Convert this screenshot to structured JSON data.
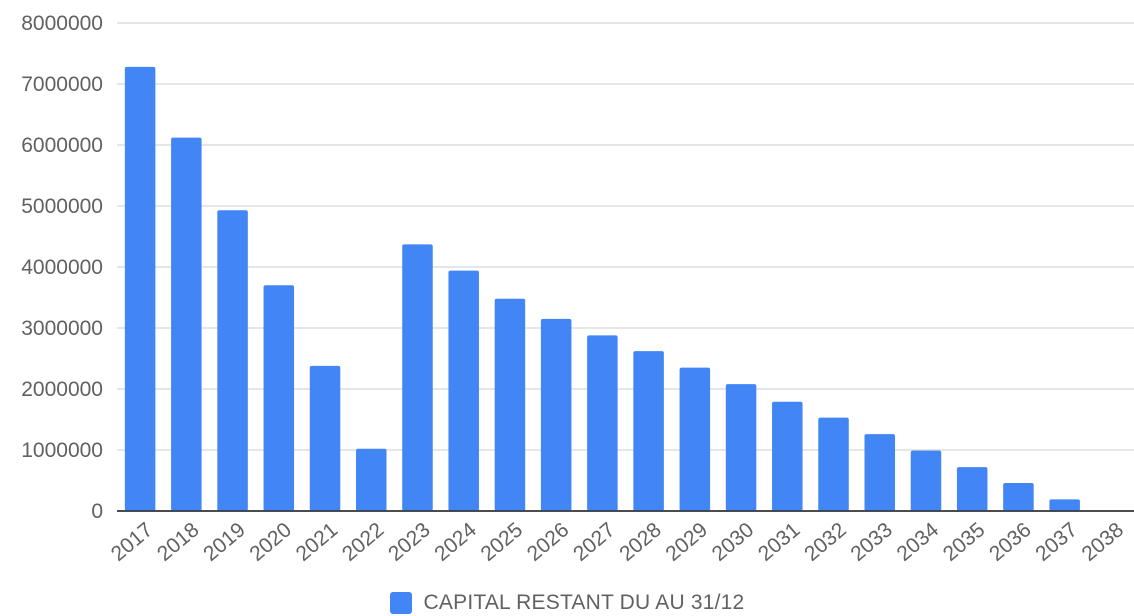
{
  "chart_data": {
    "type": "bar",
    "categories": [
      "2017",
      "2018",
      "2019",
      "2020",
      "2021",
      "2022",
      "2023",
      "2024",
      "2025",
      "2026",
      "2027",
      "2028",
      "2029",
      "2030",
      "2031",
      "2032",
      "2033",
      "2034",
      "2035",
      "2036",
      "2037",
      "2038"
    ],
    "series": [
      {
        "name": "CAPITAL RESTANT DU AU 31/12",
        "values": [
          7280000,
          6120000,
          4930000,
          3700000,
          2380000,
          1020000,
          4370000,
          3940000,
          3480000,
          3150000,
          2880000,
          2620000,
          2350000,
          2080000,
          1790000,
          1530000,
          1260000,
          990000,
          720000,
          460000,
          190000,
          0
        ]
      }
    ],
    "ylim": [
      0,
      8000000
    ],
    "yticks": [
      "0",
      "1000000",
      "2000000",
      "3000000",
      "4000000",
      "5000000",
      "6000000",
      "7000000",
      "8000000"
    ],
    "grid": true,
    "legend_position": "bottom",
    "bar_color": "#4285f4",
    "grid_color": "#cccccc",
    "axis_color": "#333333"
  }
}
